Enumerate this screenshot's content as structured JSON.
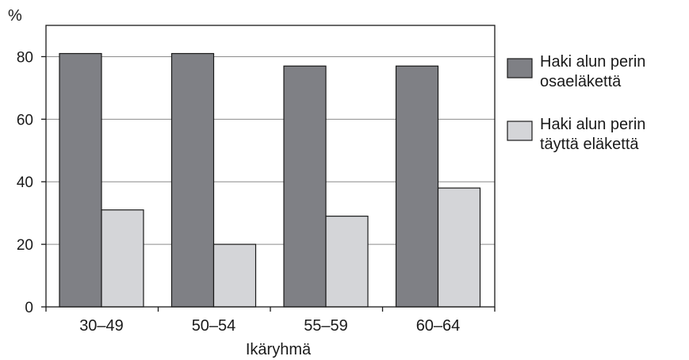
{
  "chart_data": {
    "type": "bar",
    "categories": [
      "30–49",
      "50–54",
      "55–59",
      "60–64"
    ],
    "series": [
      {
        "name": "Haki alun perin osaeläkettä",
        "name_lines": [
          "Haki alun perin",
          "osaeläkettä"
        ],
        "values": [
          81,
          81,
          77,
          77
        ],
        "color": "#7f8085"
      },
      {
        "name": "Haki alun perin täyttä eläkettä",
        "name_lines": [
          "Haki alun perin",
          "täyttä eläkettä"
        ],
        "values": [
          31,
          20,
          29,
          38
        ],
        "color": "#d4d5d8"
      }
    ],
    "ylabel": "%",
    "xlabel": "Ikäryhmä",
    "ylim": [
      0,
      90
    ],
    "yticks": [
      0,
      20,
      40,
      60,
      80
    ],
    "grid": true,
    "legend": "right"
  }
}
